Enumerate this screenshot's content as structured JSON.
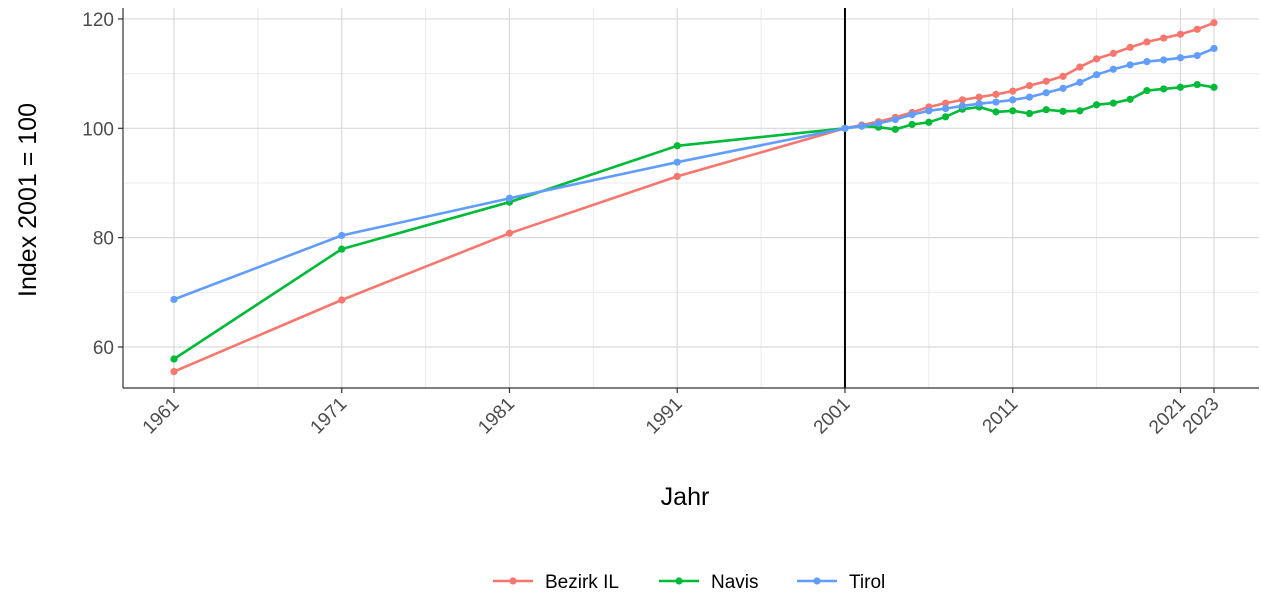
{
  "chart_data": {
    "type": "line",
    "xlabel": "Jahr",
    "ylabel": "Index 2001 = 100",
    "xlim": [
      1961,
      2023
    ],
    "ylim": [
      52.5,
      122
    ],
    "x_ticks": [
      1961,
      1971,
      1981,
      1991,
      2001,
      2011,
      2021,
      2023
    ],
    "y_ticks": [
      60,
      80,
      100,
      120
    ],
    "y_minor_gridlines": [
      70,
      90,
      110
    ],
    "x_minor_gridlines": [
      1966,
      1976,
      1986,
      1996,
      2006,
      2016
    ],
    "grid": true,
    "reference_line_x": 2001,
    "legend_position": "bottom",
    "series": [
      {
        "name": "Bezirk IL",
        "color": "#F8766D",
        "x": [
          1961,
          1971,
          1981,
          1991,
          2001,
          2002,
          2003,
          2004,
          2005,
          2006,
          2007,
          2008,
          2009,
          2010,
          2011,
          2012,
          2013,
          2014,
          2015,
          2016,
          2017,
          2018,
          2019,
          2020,
          2021,
          2022,
          2023
        ],
        "y": [
          55.5,
          68.6,
          80.8,
          91.2,
          100,
          100.6,
          101.2,
          102.0,
          102.9,
          103.9,
          104.6,
          105.2,
          105.7,
          106.2,
          106.8,
          107.8,
          108.6,
          109.5,
          111.2,
          112.7,
          113.7,
          114.8,
          115.8,
          116.5,
          117.2,
          118.1,
          119.3
        ]
      },
      {
        "name": "Navis",
        "color": "#00BA38",
        "x": [
          1961,
          1971,
          1981,
          1991,
          2001,
          2002,
          2003,
          2004,
          2005,
          2006,
          2007,
          2008,
          2009,
          2010,
          2011,
          2012,
          2013,
          2014,
          2015,
          2016,
          2017,
          2018,
          2019,
          2020,
          2021,
          2022,
          2023
        ],
        "y": [
          57.8,
          77.9,
          86.5,
          96.8,
          100,
          100.4,
          100.2,
          99.8,
          100.7,
          101.1,
          102.1,
          103.5,
          103.9,
          103.0,
          103.2,
          102.7,
          103.4,
          103.1,
          103.2,
          104.3,
          104.6,
          105.3,
          106.9,
          107.2,
          107.5,
          108.0,
          107.5
        ]
      },
      {
        "name": "Tirol",
        "color": "#619CFF",
        "x": [
          1961,
          1971,
          1981,
          1991,
          2001,
          2002,
          2003,
          2004,
          2005,
          2006,
          2007,
          2008,
          2009,
          2010,
          2011,
          2012,
          2013,
          2014,
          2015,
          2016,
          2017,
          2018,
          2019,
          2020,
          2021,
          2022,
          2023
        ],
        "y": [
          68.7,
          80.4,
          87.2,
          93.8,
          100,
          100.4,
          100.9,
          101.6,
          102.5,
          103.2,
          103.6,
          104.1,
          104.5,
          104.8,
          105.2,
          105.7,
          106.5,
          107.3,
          108.4,
          109.8,
          110.8,
          111.6,
          112.2,
          112.5,
          112.9,
          113.3,
          114.6
        ]
      }
    ]
  }
}
